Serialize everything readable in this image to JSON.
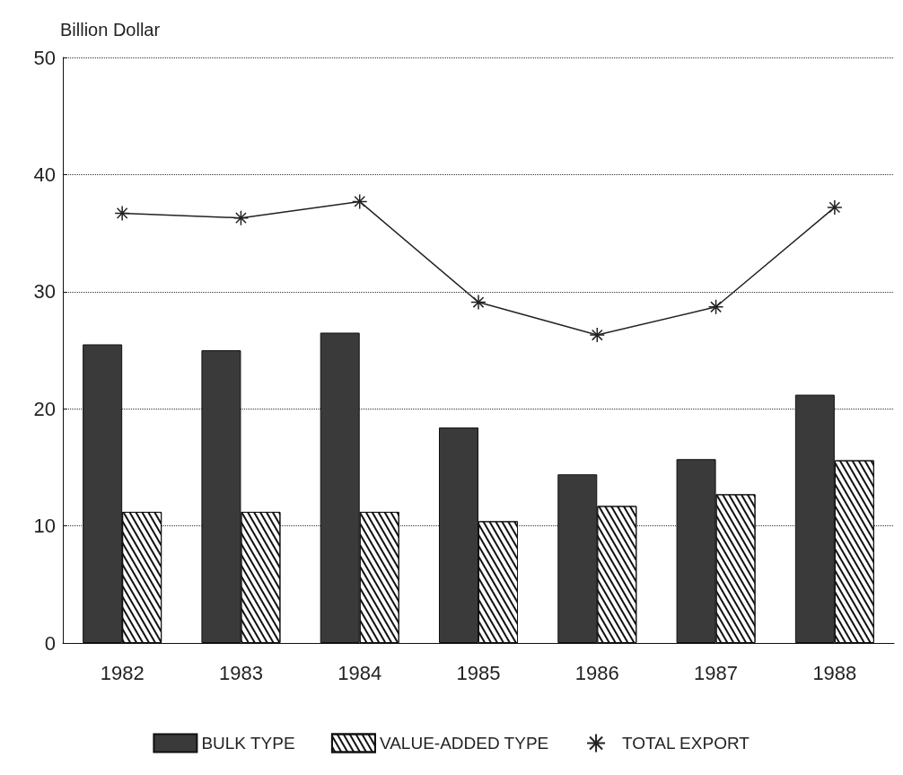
{
  "chart_data": {
    "type": "bar",
    "ylabel": "Billion Dollar",
    "categories": [
      "1982",
      "1983",
      "1984",
      "1985",
      "1986",
      "1987",
      "1988"
    ],
    "series": [
      {
        "name": "BULK TYPE",
        "color": "#3a3a3a",
        "values": [
          25.5,
          25.0,
          26.5,
          18.4,
          14.4,
          15.7,
          21.2
        ]
      },
      {
        "name": "VALUE-ADDED TYPE",
        "color": "#ffffff",
        "values": [
          11.2,
          11.2,
          11.2,
          10.4,
          11.7,
          12.7,
          15.6
        ]
      },
      {
        "name": "TOTAL EXPORT",
        "type": "line",
        "color": "#222222",
        "marker": "cross",
        "values": [
          36.7,
          36.3,
          37.7,
          29.1,
          26.3,
          28.7,
          37.2
        ]
      }
    ],
    "ylim": [
      0,
      50
    ],
    "yticks": [
      0,
      10,
      20,
      30,
      40,
      50
    ],
    "grid": "y",
    "legend": "bottom"
  }
}
